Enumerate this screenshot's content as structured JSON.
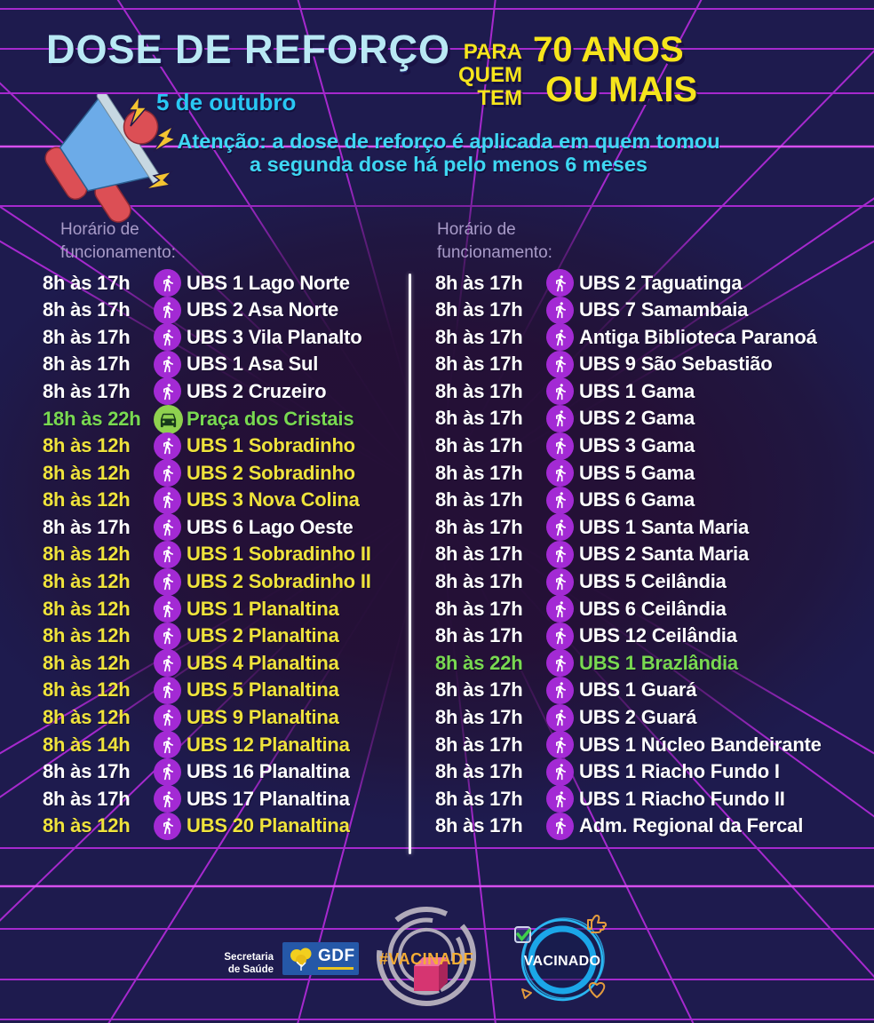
{
  "poster": {
    "title": "DOSE DE REFORÇO",
    "audience": {
      "prefix_lines": [
        "PARA",
        "QUEM",
        "TEM"
      ],
      "main_lines": [
        "70 ANOS",
        "OU MAIS"
      ]
    },
    "date": "5 de outubro",
    "warning_lines": [
      "Atenção: a dose de reforço é aplicada em quem tomou",
      "a segunda dose há pelo menos 6 meses"
    ]
  },
  "schedule": {
    "column_header_lines": [
      "Horário de",
      "funcionamento:"
    ],
    "columns": [
      {
        "rows": [
          {
            "time": "8h às 17h",
            "location": "UBS 1 Lago Norte",
            "icon": "walk",
            "color": "white"
          },
          {
            "time": "8h às 17h",
            "location": "UBS 2 Asa Norte",
            "icon": "walk",
            "color": "white"
          },
          {
            "time": "8h às 17h",
            "location": "UBS 3 Vila Planalto",
            "icon": "walk",
            "color": "white"
          },
          {
            "time": "8h às 17h",
            "location": "UBS 1 Asa Sul",
            "icon": "walk",
            "color": "white"
          },
          {
            "time": "8h às 17h",
            "location": "UBS 2 Cruzeiro",
            "icon": "walk",
            "color": "white"
          },
          {
            "time": "18h às 22h",
            "location": "Praça dos Cristais",
            "icon": "car",
            "color": "green"
          },
          {
            "time": "8h às 12h",
            "location": "UBS 1 Sobradinho",
            "icon": "walk",
            "color": "yellow"
          },
          {
            "time": "8h às 12h",
            "location": "UBS 2 Sobradinho",
            "icon": "walk",
            "color": "yellow"
          },
          {
            "time": "8h às 12h",
            "location": "UBS 3 Nova Colina",
            "icon": "walk",
            "color": "yellow"
          },
          {
            "time": "8h às 17h",
            "location": "UBS 6 Lago Oeste",
            "icon": "walk",
            "color": "white"
          },
          {
            "time": "8h às 12h",
            "location": "UBS 1 Sobradinho II",
            "icon": "walk",
            "color": "yellow"
          },
          {
            "time": "8h às 12h",
            "location": "UBS 2 Sobradinho II",
            "icon": "walk",
            "color": "yellow"
          },
          {
            "time": "8h às 12h",
            "location": "UBS 1 Planaltina",
            "icon": "walk",
            "color": "yellow"
          },
          {
            "time": "8h às 12h",
            "location": "UBS 2 Planaltina",
            "icon": "walk",
            "color": "yellow"
          },
          {
            "time": "8h às 12h",
            "location": "UBS 4 Planaltina",
            "icon": "walk",
            "color": "yellow"
          },
          {
            "time": "8h às 12h",
            "location": "UBS 5 Planaltina",
            "icon": "walk",
            "color": "yellow"
          },
          {
            "time": "8h às 12h",
            "location": "UBS 9 Planaltina",
            "icon": "walk",
            "color": "yellow"
          },
          {
            "time": "8h às 14h",
            "location": "UBS 12 Planaltina",
            "icon": "walk",
            "color": "yellow"
          },
          {
            "time": "8h às 17h",
            "location": "UBS 16 Planaltina",
            "icon": "walk",
            "color": "white"
          },
          {
            "time": "8h às 17h",
            "location": "UBS 17 Planaltina",
            "icon": "walk",
            "color": "white"
          },
          {
            "time": "8h às 12h",
            "location": "UBS 20 Planaltina",
            "icon": "walk",
            "color": "yellow"
          }
        ]
      },
      {
        "rows": [
          {
            "time": "8h às 17h",
            "location": "UBS 2 Taguatinga",
            "icon": "walk",
            "color": "white"
          },
          {
            "time": "8h às 17h",
            "location": "UBS 7 Samambaia",
            "icon": "walk",
            "color": "white"
          },
          {
            "time": "8h às 17h",
            "location": "Antiga Biblioteca Paranoá",
            "icon": "walk",
            "color": "white"
          },
          {
            "time": "8h às 17h",
            "location": "UBS 9 São Sebastião",
            "icon": "walk",
            "color": "white"
          },
          {
            "time": "8h às 17h",
            "location": "UBS 1 Gama",
            "icon": "walk",
            "color": "white"
          },
          {
            "time": "8h às 17h",
            "location": "UBS 2 Gama",
            "icon": "walk",
            "color": "white"
          },
          {
            "time": "8h às 17h",
            "location": "UBS 3 Gama",
            "icon": "walk",
            "color": "white"
          },
          {
            "time": "8h às 17h",
            "location": "UBS 5 Gama",
            "icon": "walk",
            "color": "white"
          },
          {
            "time": "8h às 17h",
            "location": "UBS 6 Gama",
            "icon": "walk",
            "color": "white"
          },
          {
            "time": "8h às 17h",
            "location": "UBS 1 Santa Maria",
            "icon": "walk",
            "color": "white"
          },
          {
            "time": "8h às 17h",
            "location": "UBS 2 Santa Maria",
            "icon": "walk",
            "color": "white"
          },
          {
            "time": "8h às 17h",
            "location": "UBS 5 Ceilândia",
            "icon": "walk",
            "color": "white"
          },
          {
            "time": "8h às 17h",
            "location": "UBS 6 Ceilândia",
            "icon": "walk",
            "color": "white"
          },
          {
            "time": "8h às 17h",
            "location": "UBS 12 Ceilândia",
            "icon": "walk",
            "color": "white"
          },
          {
            "time": "8h às 22h",
            "location": "UBS 1 Brazlândia",
            "icon": "walk",
            "color": "green"
          },
          {
            "time": "8h às 17h",
            "location": "UBS 1 Guará",
            "icon": "walk",
            "color": "white"
          },
          {
            "time": "8h às 17h",
            "location": "UBS 2 Guará",
            "icon": "walk",
            "color": "white"
          },
          {
            "time": "8h às 17h",
            "location": "UBS 1 Núcleo Bandeirante",
            "icon": "walk",
            "color": "white"
          },
          {
            "time": "8h às 17h",
            "location": "UBS 1 Riacho Fundo I",
            "icon": "walk",
            "color": "white"
          },
          {
            "time": "8h às 17h",
            "location": "UBS 1 Riacho Fundo II",
            "icon": "walk",
            "color": "white"
          },
          {
            "time": "8h às 17h",
            "location": "Adm. Regional da Fercal",
            "icon": "walk",
            "color": "white"
          }
        ]
      }
    ]
  },
  "footer": {
    "secretaria_lines": [
      "Secretaria",
      "de Saúde"
    ],
    "gdf_label": "GDF",
    "hashtag_label": "#VACINADF",
    "stamp_label": "VACINADO"
  },
  "colors": {
    "background": "#1e1b4e",
    "grid_line": "#b92be0",
    "title_blue": "#b9e9f4",
    "accent_yellow": "#f6e51c",
    "accent_cyan": "#3ed7f3",
    "row_white": "#ffffff",
    "row_yellow": "#efe33c",
    "row_green": "#79d951",
    "walk_badge": "#a32ad4",
    "car_badge": "#8fd14f"
  }
}
